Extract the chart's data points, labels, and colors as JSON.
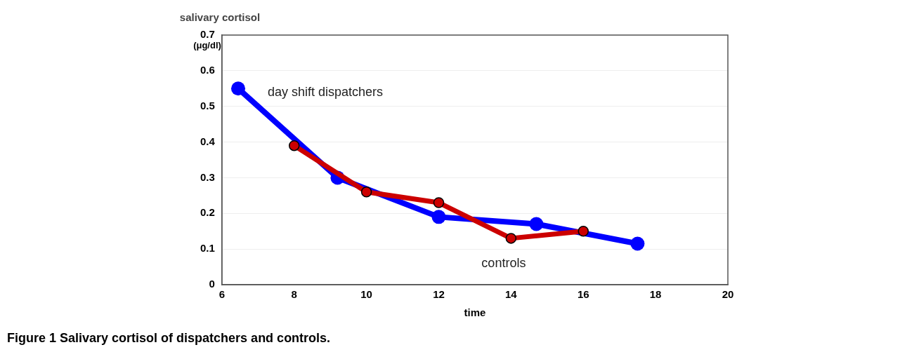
{
  "chart_data": {
    "type": "line",
    "ylabel": "salivary cortisol",
    "xlabel": "time",
    "annotations": [
      "(μg/dl)",
      "Figure 1 Salivary cortisol of dispatchers and controls."
    ],
    "series": [
      {
        "name": "day shift dispatchers",
        "color": "#0000ff",
        "x": [
          6.45,
          9.2,
          12,
          14.7,
          17.5
        ],
        "values": [
          0.55,
          0.3,
          0.19,
          0.17,
          0.115
        ]
      },
      {
        "name": "controls",
        "color": "#cc0000",
        "x": [
          8,
          10,
          12,
          14,
          16
        ],
        "values": [
          0.39,
          0.26,
          0.23,
          0.13,
          0.15
        ]
      }
    ],
    "xlim": [
      6,
      20
    ],
    "xticks": [
      6,
      8,
      10,
      12,
      14,
      16,
      18,
      20
    ],
    "ylim": [
      0,
      0.7
    ],
    "yticks": [
      0,
      0.1,
      0.2,
      0.3,
      0.4,
      0.5,
      0.6,
      0.7
    ],
    "grid": "y",
    "legend": false,
    "marker": "circle",
    "line_style": "solid"
  }
}
